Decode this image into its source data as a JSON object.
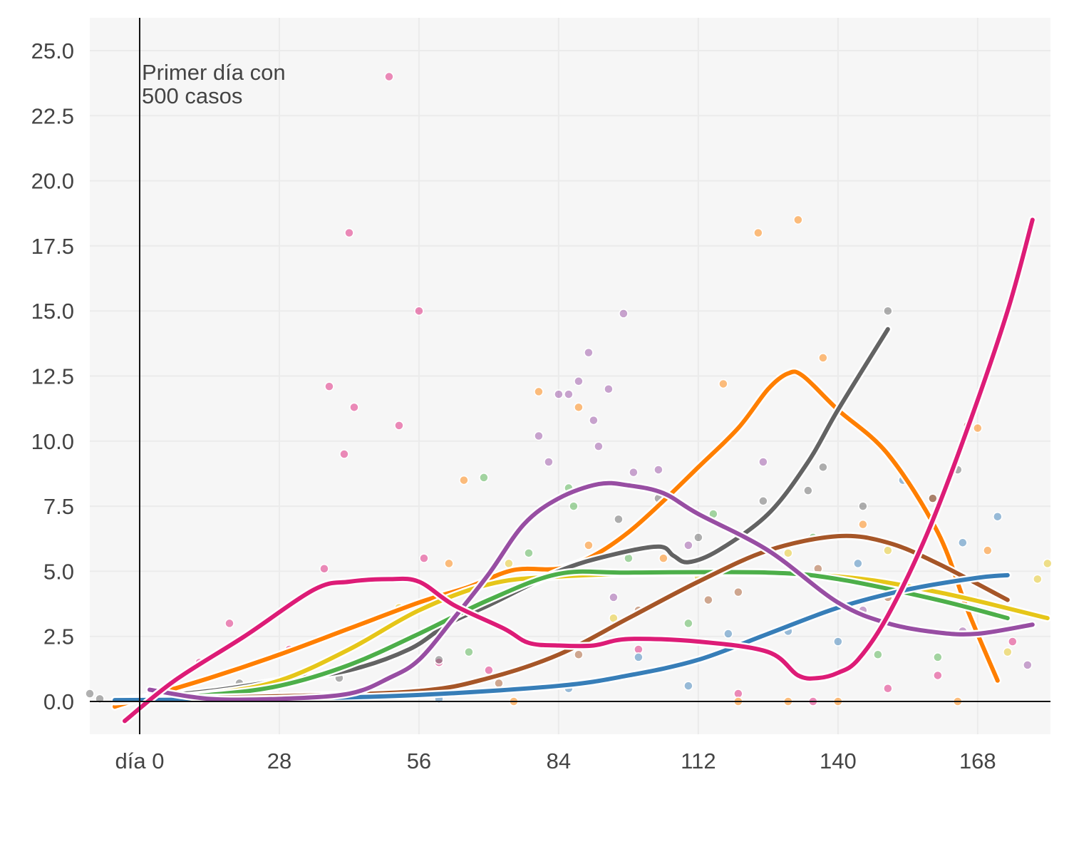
{
  "chart_data": {
    "type": "line",
    "title": "",
    "xlabel": "",
    "ylabel": "",
    "xlim": [
      -10,
      182.6
    ],
    "ylim": [
      -1.26,
      26.26
    ],
    "grid": true,
    "x_ticks": [
      0,
      28,
      56,
      84,
      112,
      140,
      168
    ],
    "x_tick_labels": [
      "día 0",
      "28",
      "56",
      "84",
      "112",
      "140",
      "168"
    ],
    "y_ticks": [
      0,
      2.5,
      5,
      7.5,
      10,
      12.5,
      15,
      17.5,
      20,
      22.5,
      25
    ],
    "y_tick_labels": [
      "0.0",
      "2.5",
      "5.0",
      "7.5",
      "10.0",
      "12.5",
      "15.0",
      "17.5",
      "20.0",
      "22.5",
      "25.0"
    ],
    "annotation": {
      "x": 0,
      "text_line1": "Primer día con",
      "text_line2": "500 casos"
    },
    "series": [
      {
        "name": "orange",
        "color": "#ff7f00",
        "x": [
          -5,
          0,
          14,
          28,
          42,
          56,
          66,
          75,
          84,
          91,
          98,
          105,
          112,
          120,
          126,
          130,
          133,
          140,
          150,
          160,
          166,
          172
        ],
        "y": [
          -0.2,
          0.1,
          0.9,
          1.8,
          2.8,
          3.8,
          4.4,
          5.05,
          5.1,
          5.6,
          6.5,
          7.7,
          9,
          10.5,
          12,
          12.6,
          12.5,
          11.2,
          9.5,
          6.5,
          3.5,
          0.8
        ]
      },
      {
        "name": "grey",
        "color": "#636363",
        "x": [
          -5,
          14,
          28,
          42,
          54,
          62,
          70,
          84,
          94,
          104,
          107,
          110,
          116,
          126,
          134,
          140,
          150
        ],
        "y": [
          0.05,
          0.4,
          0.8,
          1.2,
          2,
          3,
          3.7,
          5,
          5.6,
          5.95,
          5.6,
          5.35,
          5.8,
          7.2,
          9.2,
          11.2,
          14.3
        ]
      },
      {
        "name": "yellow",
        "color": "#e6c619",
        "x": [
          -5,
          14,
          28,
          42,
          56,
          70,
          84,
          112,
          140,
          160,
          182
        ],
        "y": [
          0,
          0.3,
          0.8,
          2,
          3.5,
          4.5,
          4.8,
          4.95,
          4.8,
          4.2,
          3.2
        ]
      },
      {
        "name": "green",
        "color": "#4daf4a",
        "x": [
          -5,
          14,
          28,
          42,
          56,
          70,
          84,
          98,
          126,
          140,
          160,
          174
        ],
        "y": [
          0,
          0.25,
          0.6,
          1.4,
          2.6,
          3.9,
          4.9,
          4.95,
          4.95,
          4.7,
          3.9,
          3.2
        ]
      },
      {
        "name": "brown",
        "color": "#a65628",
        "x": [
          0,
          28,
          56,
          70,
          84,
          98,
          112,
          126,
          140,
          150,
          160,
          174
        ],
        "y": [
          0.1,
          0.2,
          0.4,
          0.9,
          1.8,
          3.2,
          4.6,
          5.8,
          6.35,
          6.1,
          5.3,
          3.9
        ]
      },
      {
        "name": "blue",
        "color": "#377eb8",
        "x": [
          -5,
          28,
          56,
          84,
          98,
          112,
          126,
          140,
          154,
          168,
          174
        ],
        "y": [
          0.05,
          0.1,
          0.25,
          0.6,
          1,
          1.6,
          2.6,
          3.6,
          4.3,
          4.75,
          4.85
        ]
      },
      {
        "name": "purple",
        "color": "#984ea3",
        "x": [
          2,
          14,
          28,
          42,
          50,
          56,
          63,
          70,
          77,
          84,
          92,
          98,
          105,
          112,
          126,
          140,
          150,
          160,
          168,
          179
        ],
        "y": [
          0.45,
          0.1,
          0.1,
          0.3,
          0.9,
          1.6,
          3.2,
          4.9,
          6.8,
          7.8,
          8.35,
          8.3,
          8,
          7.2,
          5.8,
          3.8,
          3,
          2.65,
          2.6,
          2.95
        ]
      },
      {
        "name": "magenta",
        "color": "#dd1c77",
        "x": [
          -3,
          7,
          21,
          35,
          42,
          50,
          56,
          63,
          73,
          78,
          84,
          91,
          98,
          112,
          126,
          132,
          136,
          140,
          144,
          150,
          158,
          166,
          174,
          179
        ],
        "y": [
          -0.75,
          0.8,
          2.5,
          4.3,
          4.6,
          4.7,
          4.6,
          3.7,
          2.8,
          2.25,
          2.15,
          2.15,
          2.4,
          2.3,
          1.9,
          1.0,
          0.9,
          1.1,
          1.6,
          3.3,
          6.5,
          10.5,
          15,
          18.5
        ]
      }
    ],
    "points": [
      {
        "color": "#dd1c77",
        "x": [
          50,
          42,
          56,
          38,
          43,
          52,
          41,
          37,
          18,
          57,
          12,
          30,
          60,
          70,
          100,
          120,
          135,
          150,
          160,
          175
        ],
        "y": [
          24,
          18,
          15,
          12.1,
          11.3,
          10.6,
          9.5,
          5.1,
          3,
          5.5,
          1.5,
          2,
          1.5,
          1.2,
          2,
          0.3,
          0,
          0.5,
          1,
          2.3
        ]
      },
      {
        "color": "#984ea3",
        "x": [
          90,
          88,
          94,
          97,
          91,
          92,
          99,
          104,
          84,
          86,
          80,
          82,
          95,
          110,
          125,
          145,
          165,
          178
        ],
        "y": [
          13.4,
          12.3,
          12,
          14.9,
          10.8,
          9.8,
          8.8,
          8.9,
          11.8,
          11.8,
          10.2,
          9.2,
          4,
          6,
          9.2,
          3.5,
          2.7,
          1.4
        ]
      },
      {
        "color": "#ff7f00",
        "x": [
          124,
          132,
          80,
          88,
          65,
          117,
          137,
          168,
          164,
          120,
          130,
          75,
          105,
          145,
          170,
          62,
          90,
          140
        ],
        "y": [
          18,
          18.5,
          11.9,
          11.3,
          8.5,
          12.2,
          13.2,
          10.5,
          0,
          0,
          0,
          0,
          5.5,
          6.8,
          5.8,
          5.3,
          6,
          0
        ]
      },
      {
        "color": "#636363",
        "x": [
          150,
          137,
          134,
          159,
          164,
          104,
          96,
          60,
          20,
          -10,
          -8,
          40,
          112,
          145,
          125
        ],
        "y": [
          15,
          9,
          8.1,
          7.8,
          8.9,
          7.8,
          7,
          1.6,
          0.7,
          0.3,
          0.1,
          0.9,
          6.3,
          7.5,
          7.7
        ]
      },
      {
        "color": "#4daf4a",
        "x": [
          69,
          86,
          87,
          66,
          78,
          98,
          115,
          135,
          148,
          160,
          110,
          45
        ],
        "y": [
          8.6,
          8.2,
          7.5,
          1.9,
          5.7,
          5.5,
          7.2,
          6.3,
          1.8,
          1.7,
          3,
          1.5
        ]
      },
      {
        "color": "#377eb8",
        "x": [
          172,
          165,
          153,
          144,
          130,
          118,
          100,
          86,
          60,
          110,
          140
        ],
        "y": [
          7.1,
          6.1,
          8.5,
          5.3,
          2.7,
          2.6,
          1.7,
          0.5,
          0.1,
          0.6,
          2.3
        ]
      },
      {
        "color": "#a65628",
        "x": [
          166,
          159,
          150,
          120,
          100,
          88,
          72,
          114,
          136
        ],
        "y": [
          10.6,
          7.8,
          4,
          4.2,
          3.5,
          1.8,
          0.7,
          3.9,
          5.1
        ]
      },
      {
        "color": "#e6c619",
        "x": [
          180,
          182,
          174,
          150,
          130,
          112,
          95,
          74,
          52,
          30
        ],
        "y": [
          4.7,
          5.3,
          1.9,
          5.8,
          5.7,
          4.8,
          3.2,
          5.3,
          3.6,
          0.8
        ]
      }
    ]
  }
}
